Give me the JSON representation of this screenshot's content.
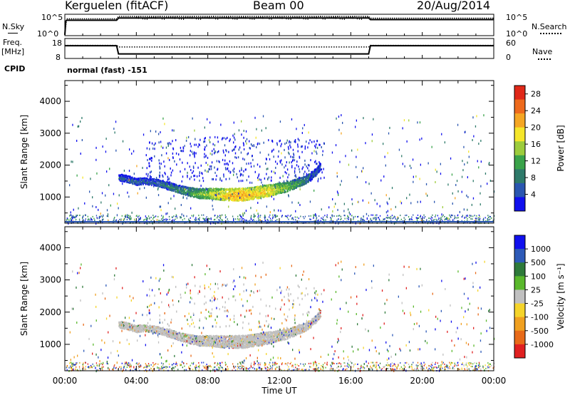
{
  "header": {
    "station": "Kerguelen (fitACF)",
    "beam": "Beam 00",
    "date": "20/Aug/2014"
  },
  "noise_panel": {
    "left_label": "N.Sky",
    "right_label": "N.Search",
    "left_ticks": [
      "10^5",
      "10^0"
    ],
    "right_ticks": [
      "10^5",
      "10^0"
    ]
  },
  "freq_panel": {
    "left_label_1": "Freq.",
    "left_label_2": "[MHz]",
    "right_label": "Nave",
    "left_ticks": [
      "18",
      "8"
    ],
    "right_ticks": [
      "60",
      "0"
    ]
  },
  "cpid": {
    "label": "CPID",
    "value": "normal (fast) -151"
  },
  "colors": {
    "power_scale": [
      "#1010ee",
      "#2a56b0",
      "#2e7a6a",
      "#3aa34a",
      "#9ccc3c",
      "#f5e62a",
      "#f5a623",
      "#ee6a1c",
      "#e02818"
    ],
    "velocity_scale": [
      "#1010ee",
      "#2d5ab8",
      "#2e7a3a",
      "#5ab82c",
      "#c0c0c0",
      "#f5d42a",
      "#f0a020",
      "#e86a18",
      "#e02020"
    ],
    "ground_scatter": "#c0c0c0"
  },
  "chart_data": [
    {
      "type": "line",
      "name": "noise",
      "x_ticks": [
        "00:00",
        "04:00",
        "08:00",
        "12:00",
        "16:00",
        "20:00",
        "00:00"
      ],
      "series": [
        {
          "name": "N.Sky",
          "x": [
            0.0,
            0.05,
            0.1,
            2.9,
            3.0,
            17.0,
            17.1,
            24.0
          ],
          "values": [
            0,
            10000,
            20000,
            20000,
            90000,
            90000,
            30000,
            30000
          ]
        },
        {
          "name": "N.Search",
          "x": [
            0.0,
            0.1,
            2.9,
            3.0,
            17.0,
            17.1,
            24.0
          ],
          "values": [
            0,
            20000,
            20000,
            100000,
            100000,
            30000,
            30000
          ]
        }
      ]
    },
    {
      "type": "line",
      "name": "frequency_nave",
      "series": [
        {
          "name": "Freq.",
          "x": [
            0.0,
            2.9,
            3.0,
            17.0,
            17.1,
            24.0
          ],
          "values": [
            14.4,
            14.4,
            10.3,
            10.3,
            14.4,
            14.4
          ]
        },
        {
          "name": "Nave",
          "x": [
            0.0,
            2.9,
            3.0,
            17.0,
            17.1,
            24.0
          ],
          "values": [
            48,
            48,
            43,
            43,
            48,
            48
          ]
        }
      ]
    },
    {
      "type": "heatmap",
      "name": "power",
      "ylabel": "Slant Range [km]",
      "xlim": [
        0,
        24
      ],
      "ylim": [
        180,
        4650
      ],
      "yticks": [
        1000,
        2000,
        3000,
        4000
      ],
      "colorbar_label": "Power [dB]",
      "colorbar_ticks": [
        "4",
        "8",
        "12",
        "16",
        "20",
        "24",
        "28"
      ],
      "colorbar_range": [
        0,
        30
      ],
      "main_echo": [
        {
          "x": 3.0,
          "y": 1620,
          "v": 6
        },
        {
          "x": 3.5,
          "y": 1560,
          "v": 7
        },
        {
          "x": 4.0,
          "y": 1480,
          "v": 7
        },
        {
          "x": 4.5,
          "y": 1500,
          "v": 6
        },
        {
          "x": 5.0,
          "y": 1460,
          "v": 7
        },
        {
          "x": 5.5,
          "y": 1400,
          "v": 8
        },
        {
          "x": 6.0,
          "y": 1300,
          "v": 9
        },
        {
          "x": 6.5,
          "y": 1220,
          "v": 10
        },
        {
          "x": 7.0,
          "y": 1150,
          "v": 12
        },
        {
          "x": 7.5,
          "y": 1100,
          "v": 14
        },
        {
          "x": 8.0,
          "y": 1100,
          "v": 16
        },
        {
          "x": 8.5,
          "y": 1080,
          "v": 18
        },
        {
          "x": 9.0,
          "y": 1060,
          "v": 20
        },
        {
          "x": 9.5,
          "y": 1060,
          "v": 22
        },
        {
          "x": 10.0,
          "y": 1060,
          "v": 22
        },
        {
          "x": 10.5,
          "y": 1100,
          "v": 20
        },
        {
          "x": 11.0,
          "y": 1150,
          "v": 20
        },
        {
          "x": 11.5,
          "y": 1200,
          "v": 19
        },
        {
          "x": 12.0,
          "y": 1260,
          "v": 16
        },
        {
          "x": 12.5,
          "y": 1330,
          "v": 14
        },
        {
          "x": 13.0,
          "y": 1430,
          "v": 12
        },
        {
          "x": 13.5,
          "y": 1550,
          "v": 9
        },
        {
          "x": 14.0,
          "y": 1760,
          "v": 7
        },
        {
          "x": 14.3,
          "y": 1980,
          "v": 6
        }
      ]
    },
    {
      "type": "heatmap",
      "name": "velocity",
      "ylabel": "Slant Range [km]",
      "xlabel": "Time UT",
      "xlim": [
        0,
        24
      ],
      "ylim": [
        180,
        4650
      ],
      "yticks": [
        1000,
        2000,
        3000,
        4000
      ],
      "colorbar_label": "Velocity [m s⁻¹]",
      "colorbar_ticks": [
        "1000",
        "500",
        "100",
        "25",
        "-25",
        "-100",
        "-500",
        "-1000"
      ],
      "main_echo_dominant": "ground scatter (±25 m/s, grey)"
    }
  ]
}
